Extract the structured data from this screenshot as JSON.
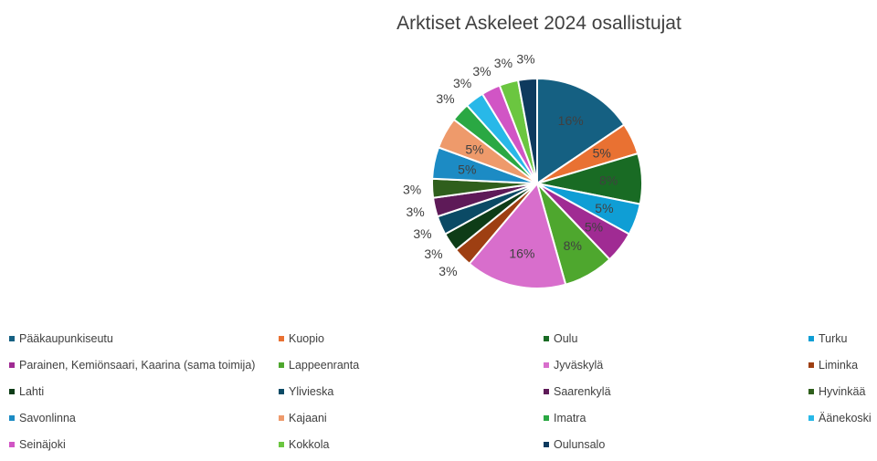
{
  "chart_data": {
    "type": "pie",
    "title": "Arktiset Askeleet 2024 osallistujat",
    "categories": [
      "Pääkaupunkiseutu",
      "Kuopio",
      "Oulu",
      "Turku",
      "Parainen, Kemiönsaari, Kaarina (sama toimija)",
      "Lappeenranta",
      "Jyväskylä",
      "Liminka",
      "Lahti",
      "Ylivieska",
      "Saarenkylä",
      "Hyvinkää",
      "Savonlinna",
      "Kajaani",
      "Imatra",
      "Äänekoski",
      "Seinäjoki",
      "Kokkola",
      "Oulunsalo"
    ],
    "values": [
      16,
      5,
      8,
      5,
      5,
      8,
      16,
      3,
      3,
      3,
      3,
      3,
      5,
      5,
      3,
      3,
      3,
      3,
      3
    ],
    "labels": [
      "16%",
      "5%",
      "8%",
      "5%",
      "5%",
      "8%",
      "16%",
      "3%",
      "3%",
      "3%",
      "3%",
      "3%",
      "5%",
      "5%",
      "3%",
      "3%",
      "3%",
      "3%",
      "3%"
    ],
    "colors": [
      "#156082",
      "#E97132",
      "#196B24",
      "#0F9ED5",
      "#A02B93",
      "#4EA72E",
      "#D86ECC",
      "#9E3F12",
      "#0E3C17",
      "#0B4A65",
      "#5E1A58",
      "#2F5F1C",
      "#1C8BC4",
      "#EE9A6B",
      "#2AA843",
      "#28B8E8",
      "#D155C5",
      "#6BC640",
      "#0E3A5E"
    ],
    "legend": "bottom"
  }
}
